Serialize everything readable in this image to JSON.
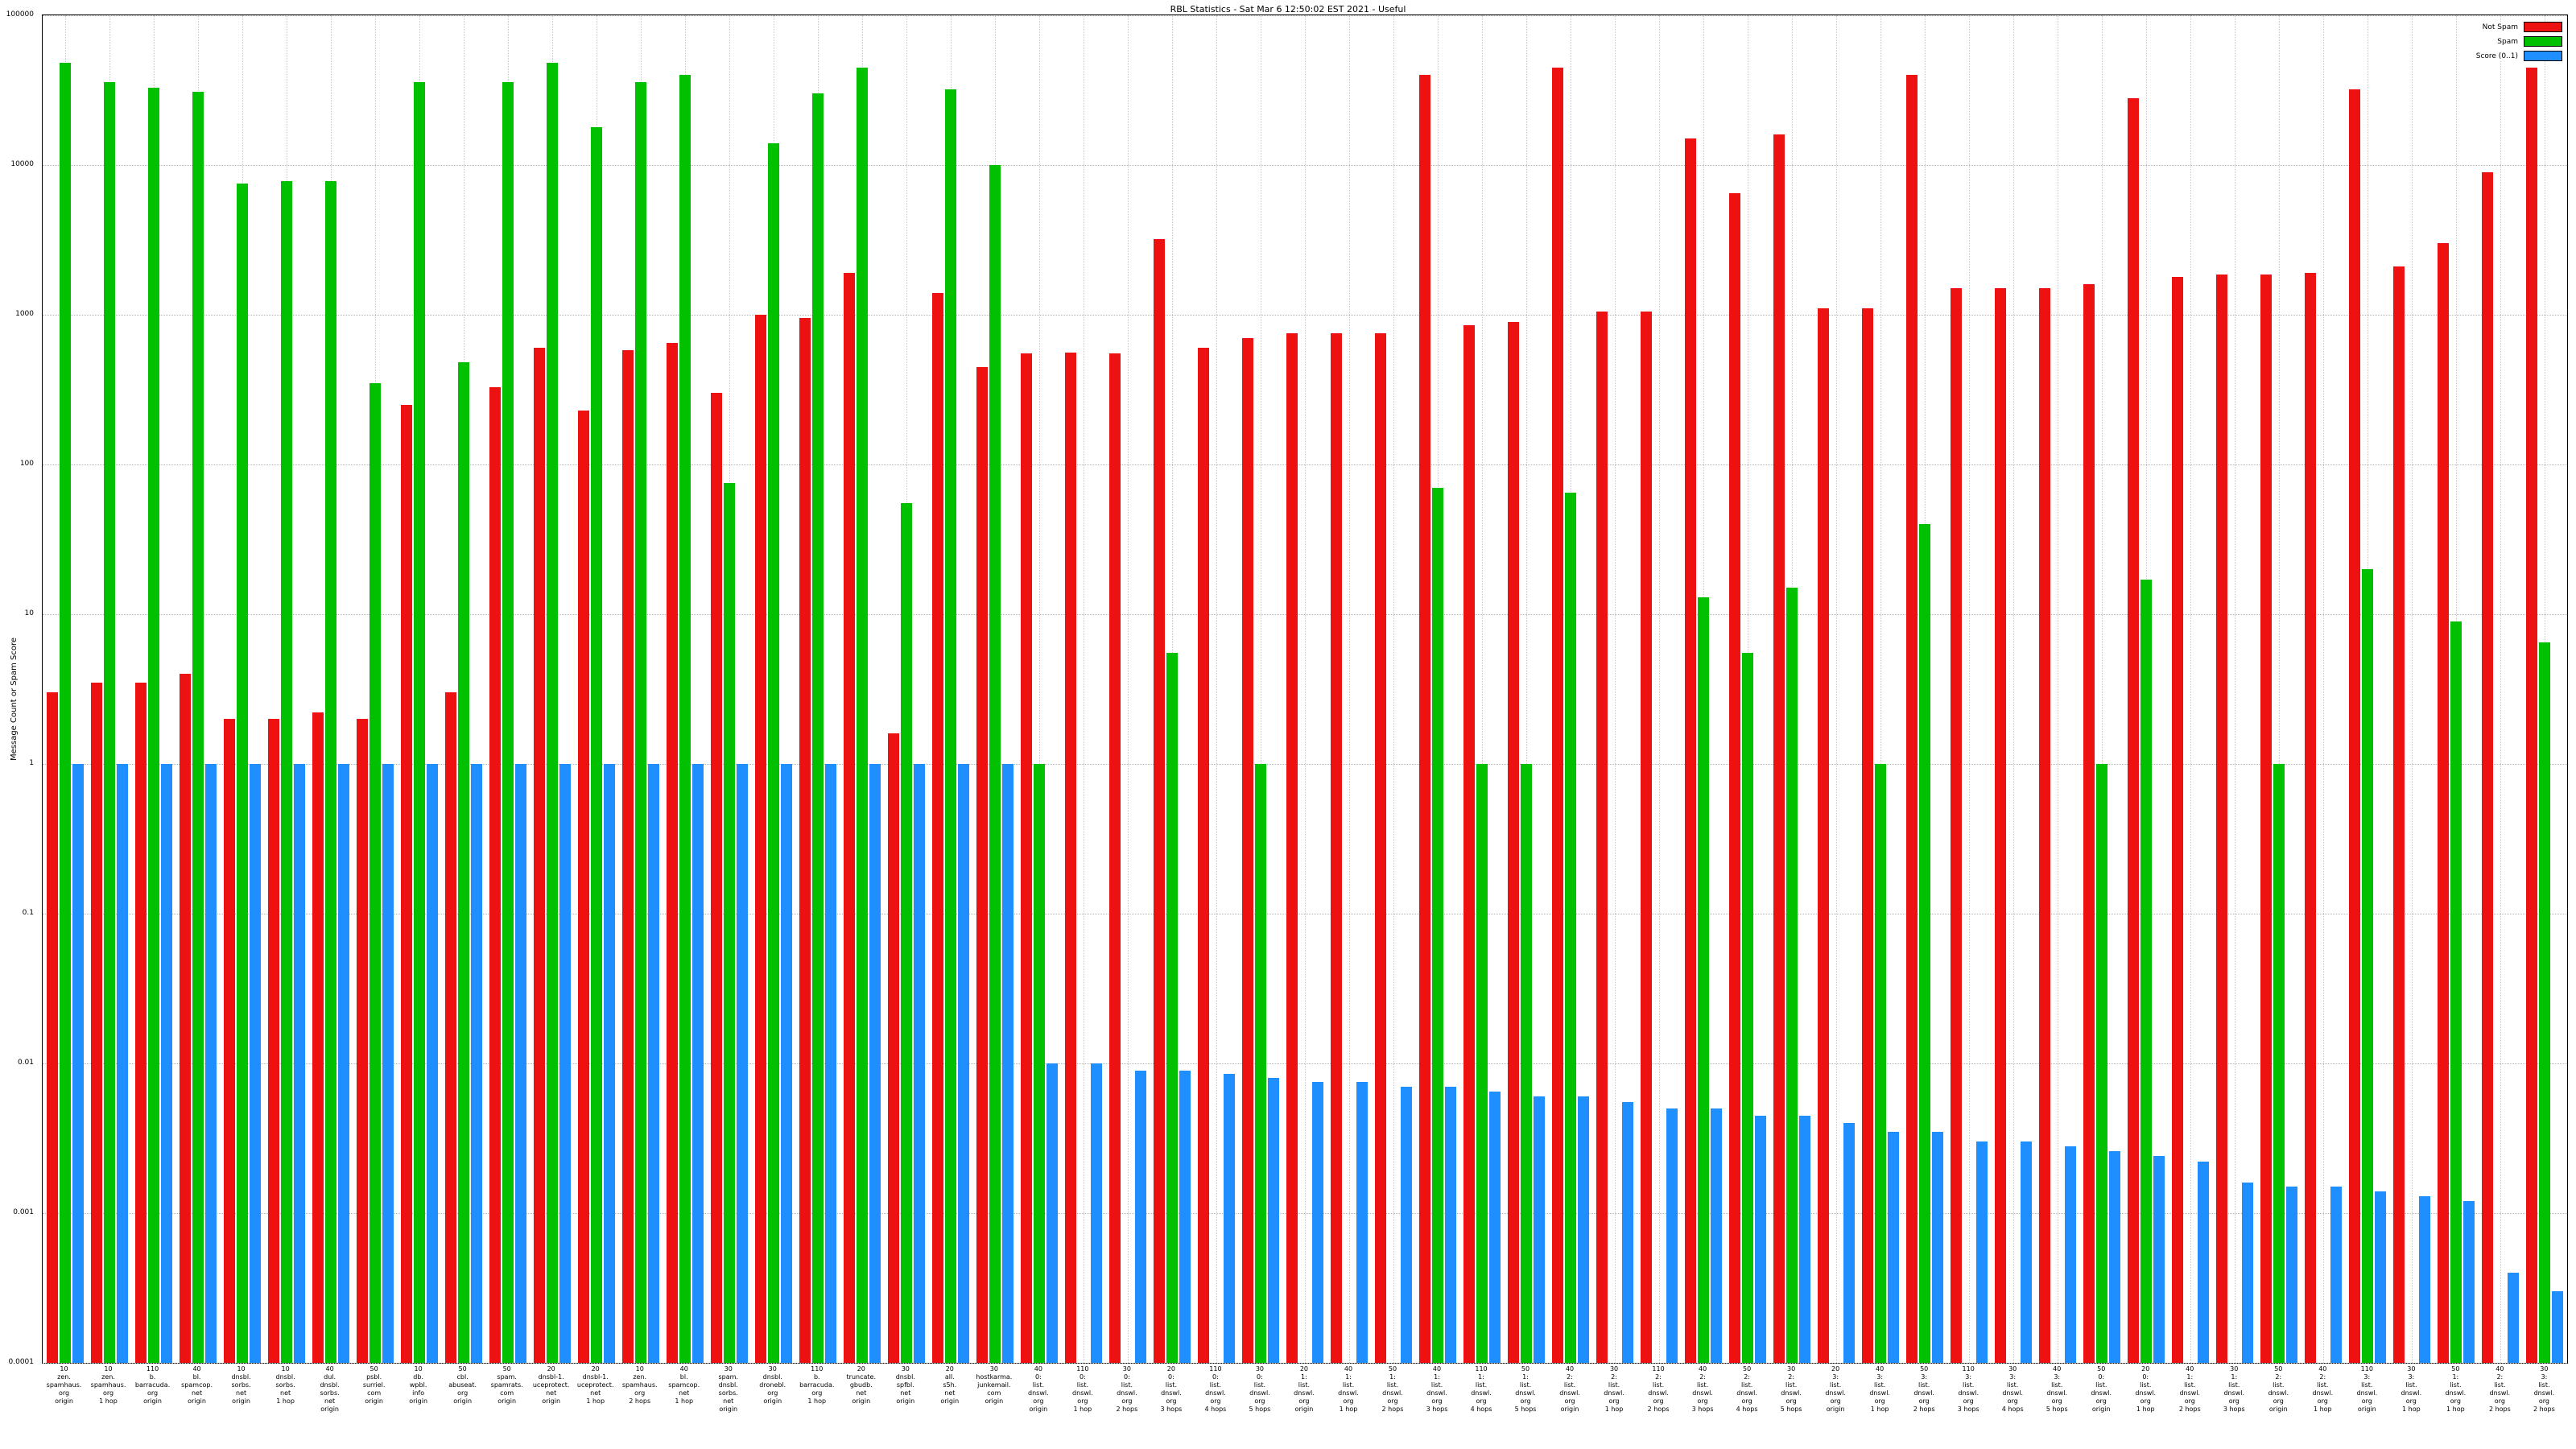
{
  "chart_data": {
    "type": "bar",
    "title": "RBL Statistics - Sat Mar  6 12:50:02 EST 2021 - Useful",
    "ylabel": "Message Count or Spam Score",
    "xlabel": "",
    "yscale": "log",
    "ylim": [
      0.0001,
      100000
    ],
    "yticks": [
      "100000",
      "10000",
      "1000",
      "100",
      "10",
      "1",
      "0.1",
      "0.01",
      "0.001",
      "0.0001"
    ],
    "grid": true,
    "legend_position": "top-right",
    "series": [
      {
        "name": "Not Spam",
        "color": "#ee1111",
        "values": [
          3,
          3.5,
          3.5,
          4,
          2,
          2,
          2.2,
          2,
          250,
          3,
          330,
          600,
          230,
          580,
          650,
          300,
          1000,
          950,
          1900,
          1.6,
          1400,
          450,
          550,
          560,
          550,
          3200,
          600,
          700,
          750,
          750,
          750,
          40000,
          850,
          900,
          45000,
          1050,
          1050,
          15000,
          6500,
          16000,
          1100,
          1100,
          40000,
          1500,
          1500,
          1500,
          1600,
          28000,
          1800,
          1850,
          1850,
          1900,
          32000,
          2100,
          3000,
          9000,
          45000
        ]
      },
      {
        "name": "Spam",
        "color": "#00c000",
        "values": [
          48000,
          36000,
          33000,
          31000,
          7500,
          7800,
          7800,
          350,
          36000,
          480,
          36000,
          48000,
          18000,
          36000,
          40000,
          75,
          14000,
          30000,
          45000,
          55,
          32000,
          10000,
          1,
          0,
          0,
          5.5,
          0,
          1,
          0,
          0,
          0,
          70,
          1,
          1,
          65,
          0,
          0,
          13,
          5.5,
          15,
          0,
          1,
          40,
          0,
          0,
          0,
          1,
          17,
          0,
          0,
          1,
          0,
          20,
          0,
          9,
          0,
          6.5
        ]
      },
      {
        "name": "Score (0..1)",
        "color": "#1f8fff",
        "values": [
          1,
          1,
          1,
          1,
          1,
          1,
          1,
          1,
          1,
          1,
          1,
          1,
          1,
          1,
          1,
          1,
          1,
          1,
          1,
          1,
          1,
          1,
          0.01,
          0.01,
          0.009,
          0.009,
          0.0085,
          0.008,
          0.0075,
          0.0075,
          0.007,
          0.007,
          0.0065,
          0.006,
          0.006,
          0.0055,
          0.005,
          0.005,
          0.0045,
          0.0045,
          0.004,
          0.0035,
          0.0035,
          0.003,
          0.003,
          0.0028,
          0.0026,
          0.0024,
          0.0022,
          0.0016,
          0.0015,
          0.0015,
          0.0014,
          0.0013,
          0.0012,
          0.0004,
          0.0003
        ]
      }
    ],
    "categories": [
      [
        "10",
        "zen.",
        "spamhaus.",
        "org",
        "origin"
      ],
      [
        "10",
        "zen.",
        "spamhaus.",
        "org",
        "1 hop"
      ],
      [
        "110",
        "b.",
        "barracuda.",
        "org",
        "origin"
      ],
      [
        "40",
        "bl.",
        "spamcop.",
        "net",
        "origin"
      ],
      [
        "10",
        "dnsbl.",
        "sorbs.",
        "net",
        "origin"
      ],
      [
        "10",
        "dnsbl.",
        "sorbs.",
        "net",
        "1 hop"
      ],
      [
        "40",
        "dul.",
        "dnsbl.",
        "sorbs.",
        "net",
        "origin"
      ],
      [
        "50",
        "psbl.",
        "surriel.",
        "com",
        "origin"
      ],
      [
        "10",
        "db.",
        "wpbl.",
        "info",
        "origin"
      ],
      [
        "50",
        "cbl.",
        "abuseat.",
        "org",
        "origin"
      ],
      [
        "50",
        "spam.",
        "spamrats.",
        "com",
        "origin"
      ],
      [
        "20",
        "dnsbl-1.",
        "uceprotect.",
        "net",
        "origin"
      ],
      [
        "20",
        "dnsbl-1.",
        "uceprotect.",
        "net",
        "1 hop"
      ],
      [
        "10",
        "zen.",
        "spamhaus.",
        "org",
        "2 hops"
      ],
      [
        "40",
        "bl.",
        "spamcop.",
        "net",
        "1 hop"
      ],
      [
        "30",
        "spam.",
        "dnsbl.",
        "sorbs.",
        "net",
        "origin"
      ],
      [
        "30",
        "dnsbl.",
        "dronebl.",
        "org",
        "origin"
      ],
      [
        "110",
        "b.",
        "barracuda.",
        "org",
        "1 hop"
      ],
      [
        "20",
        "truncate.",
        "gbudb.",
        "net",
        "origin"
      ],
      [
        "30",
        "dnsbl.",
        "spfbl.",
        "net",
        "origin"
      ],
      [
        "20",
        "all.",
        "s5h.",
        "net",
        "origin"
      ],
      [
        "30",
        "hostkarma.",
        "junkemail.",
        "com",
        "origin"
      ],
      [
        "40",
        "0:",
        "list.",
        "dnswl.",
        "org",
        "origin"
      ],
      [
        "110",
        "0:",
        "list.",
        "dnswl.",
        "org",
        "1 hop"
      ],
      [
        "30",
        "0:",
        "list.",
        "dnswl.",
        "org",
        "2 hops"
      ],
      [
        "20",
        "0:",
        "list.",
        "dnswl.",
        "org",
        "3 hops"
      ],
      [
        "110",
        "0:",
        "list.",
        "dnswl.",
        "org",
        "4 hops"
      ],
      [
        "30",
        "0:",
        "list.",
        "dnswl.",
        "org",
        "5 hops"
      ],
      [
        "20",
        "1:",
        "list.",
        "dnswl.",
        "org",
        "origin"
      ],
      [
        "40",
        "1:",
        "list.",
        "dnswl.",
        "org",
        "1 hop"
      ],
      [
        "50",
        "1:",
        "list.",
        "dnswl.",
        "org",
        "2 hops"
      ],
      [
        "40",
        "1:",
        "list.",
        "dnswl.",
        "org",
        "3 hops"
      ],
      [
        "110",
        "1:",
        "list.",
        "dnswl.",
        "org",
        "4 hops"
      ],
      [
        "50",
        "1:",
        "list.",
        "dnswl.",
        "org",
        "5 hops"
      ],
      [
        "40",
        "2:",
        "list.",
        "dnswl.",
        "org",
        "origin"
      ],
      [
        "30",
        "2:",
        "list.",
        "dnswl.",
        "org",
        "1 hop"
      ],
      [
        "110",
        "2:",
        "list.",
        "dnswl.",
        "org",
        "2 hops"
      ],
      [
        "40",
        "2:",
        "list.",
        "dnswl.",
        "org",
        "3 hops"
      ],
      [
        "50",
        "2:",
        "list.",
        "dnswl.",
        "org",
        "4 hops"
      ],
      [
        "30",
        "2:",
        "list.",
        "dnswl.",
        "org",
        "5 hops"
      ],
      [
        "20",
        "3:",
        "list.",
        "dnswl.",
        "org",
        "origin"
      ],
      [
        "40",
        "3:",
        "list.",
        "dnswl.",
        "org",
        "1 hop"
      ],
      [
        "50",
        "3:",
        "list.",
        "dnswl.",
        "org",
        "2 hops"
      ],
      [
        "110",
        "3:",
        "list.",
        "dnswl.",
        "org",
        "3 hops"
      ],
      [
        "30",
        "3:",
        "list.",
        "dnswl.",
        "org",
        "4 hops"
      ],
      [
        "40",
        "3:",
        "list.",
        "dnswl.",
        "org",
        "5 hops"
      ],
      [
        "50",
        "0:",
        "list.",
        "dnswl.",
        "org",
        "origin"
      ],
      [
        "20",
        "0:",
        "list.",
        "dnswl.",
        "org",
        "1 hop"
      ],
      [
        "40",
        "1:",
        "list.",
        "dnswl.",
        "org",
        "2 hops"
      ],
      [
        "30",
        "1:",
        "list.",
        "dnswl.",
        "org",
        "3 hops"
      ],
      [
        "50",
        "2:",
        "list.",
        "dnswl.",
        "org",
        "origin"
      ],
      [
        "40",
        "2:",
        "list.",
        "dnswl.",
        "org",
        "1 hop"
      ],
      [
        "110",
        "3:",
        "list.",
        "dnswl.",
        "org",
        "origin"
      ],
      [
        "30",
        "3:",
        "list.",
        "dnswl.",
        "org",
        "1 hop"
      ],
      [
        "50",
        "1:",
        "list.",
        "dnswl.",
        "org",
        "1 hop"
      ],
      [
        "40",
        "2:",
        "list.",
        "dnswl.",
        "org",
        "2 hops"
      ],
      [
        "30",
        "3:",
        "list.",
        "dnswl.",
        "org",
        "2 hops"
      ]
    ]
  }
}
